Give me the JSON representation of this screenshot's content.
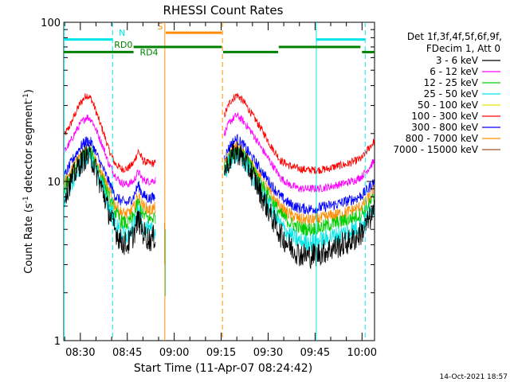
{
  "chart_data": {
    "type": "line",
    "title": "RHESSI Count Rates",
    "xlabel": "Start Time (11-Apr-07 08:24:42)",
    "ylabel_main": "Count Rate (s",
    "ylabel_sup1": "-1",
    "ylabel_mid": " detector segment",
    "ylabel_sup2": "-1",
    "ylabel_end": ")",
    "timestamp": "14-Oct-2021 18:57",
    "x_range_min": [
      504.7,
      604.0
    ],
    "y_log_range": [
      1,
      100
    ],
    "x_ticks": [
      {
        "label": "08:30",
        "value": 510
      },
      {
        "label": "08:45",
        "value": 525
      },
      {
        "label": "09:00",
        "value": 540
      },
      {
        "label": "09:15",
        "value": 555
      },
      {
        "label": "09:30",
        "value": 570
      },
      {
        "label": "09:45",
        "value": 585
      },
      {
        "label": "10:00",
        "value": 600
      }
    ],
    "y_ticks": [
      {
        "label": "1",
        "value": 1
      },
      {
        "label": "10",
        "value": 10
      },
      {
        "label": "100",
        "value": 100
      }
    ],
    "legend": {
      "header_lines": [
        "Det 1f,3f,4f,5f,6f,9f,",
        "FDecim 1, Att 0"
      ],
      "entries": [
        {
          "label": "3 - 6 keV",
          "color": "#000000"
        },
        {
          "label": "6 - 12 keV",
          "color": "#ff00ff"
        },
        {
          "label": "12 - 25 keV",
          "color": "#00cc00"
        },
        {
          "label": "25 - 50 keV",
          "color": "#00e5e5"
        },
        {
          "label": "50 - 100 keV",
          "color": "#e5e500"
        },
        {
          "label": "100 - 300 keV",
          "color": "#ff0000"
        },
        {
          "label": "300 - 800 keV",
          "color": "#0000ff"
        },
        {
          "label": "800 - 7000 keV",
          "color": "#ff8c00"
        },
        {
          "label": "7000 - 15000 keV",
          "color": "#a0522d"
        }
      ]
    },
    "series": [
      {
        "name": "100 - 300 keV",
        "color": "#ff0000",
        "seg1": [
          [
            504.7,
            19
          ],
          [
            507,
            23
          ],
          [
            510,
            31
          ],
          [
            512,
            35
          ],
          [
            513.5,
            33
          ],
          [
            516,
            24
          ],
          [
            519,
            16
          ],
          [
            521,
            13
          ],
          [
            523,
            12
          ],
          [
            525,
            12
          ],
          [
            527,
            13
          ],
          [
            528.5,
            15.5
          ],
          [
            530,
            13.5
          ],
          [
            532,
            13
          ],
          [
            534,
            13
          ]
        ],
        "seg2": [
          [
            556,
            26
          ],
          [
            558,
            32
          ],
          [
            560,
            35
          ],
          [
            562,
            32
          ],
          [
            565,
            26
          ],
          [
            568,
            21
          ],
          [
            571,
            16.5
          ],
          [
            574,
            13.5
          ],
          [
            577,
            12.5
          ],
          [
            580,
            12
          ],
          [
            583,
            11.8
          ],
          [
            586,
            11.8
          ],
          [
            589,
            12
          ],
          [
            592,
            12.5
          ],
          [
            595,
            12.8
          ],
          [
            598,
            13.5
          ],
          [
            600,
            14
          ],
          [
            602,
            16
          ],
          [
            604,
            18
          ]
        ]
      },
      {
        "name": "6 - 12 keV",
        "color": "#ff00ff",
        "seg1": [
          [
            504.7,
            15
          ],
          [
            507,
            18
          ],
          [
            510,
            23
          ],
          [
            512,
            25.5
          ],
          [
            513.5,
            24.5
          ],
          [
            516,
            19
          ],
          [
            519,
            13
          ],
          [
            521,
            11
          ],
          [
            523,
            9.8
          ],
          [
            525,
            9.6
          ],
          [
            527,
            10
          ],
          [
            528.5,
            11.5
          ],
          [
            530,
            10.2
          ],
          [
            532,
            10
          ],
          [
            534,
            10.2
          ]
        ],
        "seg2": [
          [
            556,
            20
          ],
          [
            558,
            24
          ],
          [
            560,
            26
          ],
          [
            562,
            24
          ],
          [
            565,
            20
          ],
          [
            568,
            16
          ],
          [
            571,
            13
          ],
          [
            574,
            10.5
          ],
          [
            577,
            9.5
          ],
          [
            580,
            9
          ],
          [
            583,
            9
          ],
          [
            586,
            9
          ],
          [
            589,
            9.2
          ],
          [
            592,
            9.5
          ],
          [
            595,
            9.8
          ],
          [
            598,
            10.2
          ],
          [
            600,
            10.8
          ],
          [
            602,
            12
          ],
          [
            604,
            13.5
          ]
        ]
      },
      {
        "name": "300 - 800 keV",
        "color": "#0000ff",
        "seg1": [
          [
            504.7,
            10.5
          ],
          [
            507,
            13
          ],
          [
            510,
            16.5
          ],
          [
            512,
            18
          ],
          [
            513.5,
            17.5
          ],
          [
            516,
            13.5
          ],
          [
            519,
            10
          ],
          [
            521,
            8.2
          ],
          [
            523,
            7.5
          ],
          [
            525,
            7.3
          ],
          [
            527,
            8
          ],
          [
            528.5,
            9.5
          ],
          [
            530,
            8.2
          ],
          [
            532,
            7.8
          ],
          [
            534,
            8
          ]
        ],
        "seg2": [
          [
            556,
            14
          ],
          [
            558,
            17
          ],
          [
            560,
            18.5
          ],
          [
            562,
            17
          ],
          [
            565,
            14
          ],
          [
            568,
            11.5
          ],
          [
            571,
            9.5
          ],
          [
            574,
            8
          ],
          [
            577,
            7.2
          ],
          [
            580,
            6.8
          ],
          [
            583,
            6.7
          ],
          [
            586,
            6.8
          ],
          [
            589,
            7
          ],
          [
            592,
            7.2
          ],
          [
            595,
            7.5
          ],
          [
            598,
            7.8
          ],
          [
            600,
            8.2
          ],
          [
            602,
            9
          ],
          [
            604,
            10
          ]
        ]
      },
      {
        "name": "800 - 7000 keV",
        "color": "#ff8c00",
        "seg1": [
          [
            504.7,
            9.5
          ],
          [
            507,
            11.5
          ],
          [
            510,
            14.5
          ],
          [
            512,
            16
          ],
          [
            513.5,
            15.5
          ],
          [
            516,
            12
          ],
          [
            519,
            8.8
          ],
          [
            521,
            7.2
          ],
          [
            523,
            6.4
          ],
          [
            525,
            6.2
          ],
          [
            527,
            6.8
          ],
          [
            528.5,
            8.2
          ],
          [
            530,
            7
          ],
          [
            532,
            6.6
          ],
          [
            534,
            6.8
          ]
        ],
        "seg2": [
          [
            556,
            12.5
          ],
          [
            558,
            15
          ],
          [
            560,
            16.5
          ],
          [
            562,
            15
          ],
          [
            565,
            12.5
          ],
          [
            568,
            10
          ],
          [
            571,
            8.2
          ],
          [
            574,
            6.8
          ],
          [
            577,
            6.2
          ],
          [
            580,
            5.8
          ],
          [
            583,
            5.7
          ],
          [
            586,
            5.8
          ],
          [
            589,
            6
          ],
          [
            592,
            6.2
          ],
          [
            595,
            6.4
          ],
          [
            598,
            6.7
          ],
          [
            600,
            7
          ],
          [
            602,
            7.8
          ],
          [
            604,
            8.8
          ]
        ]
      },
      {
        "name": "12 - 25 keV",
        "color": "#00cc00",
        "seg1": [
          [
            504.7,
            8.8
          ],
          [
            507,
            10.8
          ],
          [
            510,
            13.8
          ],
          [
            512,
            15.5
          ],
          [
            513.5,
            15
          ],
          [
            516,
            11.5
          ],
          [
            519,
            8
          ],
          [
            521,
            6.5
          ],
          [
            523,
            5.6
          ],
          [
            525,
            5.4
          ],
          [
            527,
            6
          ],
          [
            528.5,
            7.4
          ],
          [
            530,
            6.2
          ],
          [
            532,
            5.8
          ],
          [
            534,
            6
          ]
        ],
        "seg2": [
          [
            556,
            12
          ],
          [
            558,
            14.5
          ],
          [
            560,
            16
          ],
          [
            562,
            14.5
          ],
          [
            565,
            12
          ],
          [
            568,
            9.5
          ],
          [
            571,
            7.6
          ],
          [
            574,
            6.2
          ],
          [
            577,
            5.5
          ],
          [
            580,
            5.1
          ],
          [
            583,
            5
          ],
          [
            586,
            5.1
          ],
          [
            589,
            5.3
          ],
          [
            592,
            5.5
          ],
          [
            595,
            5.7
          ],
          [
            598,
            6
          ],
          [
            600,
            6.3
          ],
          [
            602,
            7
          ],
          [
            604,
            8
          ]
        ]
      },
      {
        "name": "25 - 50 keV",
        "color": "#00e5e5",
        "seg1": [
          [
            504.7,
            7.5
          ],
          [
            507,
            9.5
          ],
          [
            510,
            12.5
          ],
          [
            512,
            14.5
          ],
          [
            513.5,
            14
          ],
          [
            516,
            10.5
          ],
          [
            519,
            7
          ],
          [
            521,
            5.5
          ],
          [
            523,
            4.7
          ],
          [
            525,
            4.5
          ],
          [
            527,
            5.1
          ],
          [
            528.5,
            6.4
          ],
          [
            530,
            5.2
          ],
          [
            532,
            4.8
          ],
          [
            534,
            5
          ]
        ],
        "seg2": [
          [
            556,
            11
          ],
          [
            558,
            13.5
          ],
          [
            560,
            15
          ],
          [
            562,
            13.5
          ],
          [
            565,
            11
          ],
          [
            568,
            8.5
          ],
          [
            571,
            6.6
          ],
          [
            574,
            5.3
          ],
          [
            577,
            4.6
          ],
          [
            580,
            4.2
          ],
          [
            583,
            4.1
          ],
          [
            586,
            4.2
          ],
          [
            589,
            4.4
          ],
          [
            592,
            4.6
          ],
          [
            595,
            4.8
          ],
          [
            598,
            5.1
          ],
          [
            600,
            5.4
          ],
          [
            602,
            6.1
          ],
          [
            604,
            7
          ]
        ]
      },
      {
        "name": "3 - 6 keV",
        "color": "#000000",
        "seg1": [
          [
            504.7,
            8
          ],
          [
            507,
            10
          ],
          [
            510,
            13
          ],
          [
            512,
            14.5
          ],
          [
            513.5,
            14
          ],
          [
            516,
            10
          ],
          [
            519,
            6.5
          ],
          [
            521,
            5
          ],
          [
            523,
            4.2
          ],
          [
            525,
            4
          ],
          [
            527,
            4.6
          ],
          [
            528.5,
            5.8
          ],
          [
            530,
            4.8
          ],
          [
            532,
            4.3
          ],
          [
            534,
            4.5
          ]
        ],
        "seg2": [
          [
            556,
            11.5
          ],
          [
            558,
            14
          ],
          [
            560,
            15.5
          ],
          [
            562,
            14
          ],
          [
            565,
            11
          ],
          [
            568,
            8
          ],
          [
            571,
            6
          ],
          [
            574,
            4.6
          ],
          [
            577,
            3.9
          ],
          [
            580,
            3.5
          ],
          [
            583,
            3.4
          ],
          [
            586,
            3.5
          ],
          [
            589,
            3.7
          ],
          [
            592,
            3.9
          ],
          [
            595,
            4.1
          ],
          [
            598,
            4.4
          ],
          [
            600,
            4.8
          ],
          [
            602,
            5.6
          ],
          [
            604,
            6.5
          ]
        ]
      }
    ],
    "annotations": {
      "n_label": "N",
      "s_label": "S",
      "rd0_label": "RD0",
      "rd4_label": "RD4"
    }
  }
}
